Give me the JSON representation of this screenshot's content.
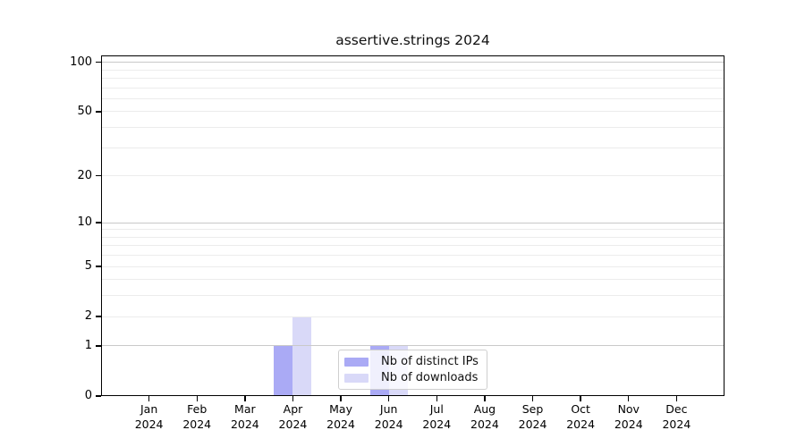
{
  "chart_data": {
    "type": "bar",
    "title": "assertive.strings 2024",
    "categories": [
      "Jan",
      "Feb",
      "Mar",
      "Apr",
      "May",
      "Jun",
      "Jul",
      "Aug",
      "Sep",
      "Oct",
      "Nov",
      "Dec"
    ],
    "x_tick_second_line": "2024",
    "series": [
      {
        "name": "Nb of distinct IPs",
        "color": "#aaaaf5",
        "values": [
          0,
          0,
          0,
          1,
          0,
          1,
          0,
          0,
          0,
          0,
          0,
          0
        ]
      },
      {
        "name": "Nb of downloads",
        "color": "#d9d9f8",
        "values": [
          0,
          0,
          0,
          2,
          0,
          1,
          0,
          0,
          0,
          0,
          0,
          0
        ]
      }
    ],
    "yscale": "log10(value+1)",
    "ylim": [
      0,
      110
    ],
    "yticks_labeled": [
      0,
      1,
      2,
      5,
      10,
      20,
      50,
      100
    ],
    "grid_major_values": [
      1,
      10,
      100
    ],
    "grid_minor_values": [
      2,
      3,
      4,
      5,
      6,
      7,
      8,
      9,
      20,
      30,
      40,
      50,
      60,
      70,
      80,
      90
    ],
    "grid": "horizontal",
    "legend_position": "inside-bottom-center",
    "colors": {
      "grid_major": "#c9c9c9",
      "grid_minor": "#ececec",
      "axis": "#000000",
      "background": "#ffffff"
    }
  }
}
